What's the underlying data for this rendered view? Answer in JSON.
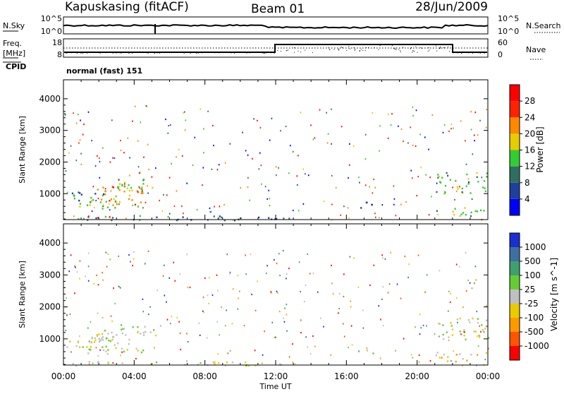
{
  "header": {
    "station": "Kapuskasing (fitACF)",
    "beam": "Beam 01",
    "date": "28/Jun/2009"
  },
  "noise_panel": {
    "left_label": "N.Sky",
    "right_label": "N.Search",
    "left_ticks": [
      "10^5",
      "10^0"
    ],
    "right_ticks": [
      "10^5",
      "10^0"
    ]
  },
  "freq_panel": {
    "left_label_1": "Freq.",
    "left_label_2": "[MHz]",
    "right_label": "Nave",
    "left_ticks": [
      "18",
      "8"
    ],
    "right_ticks": [
      "60",
      "0"
    ]
  },
  "cpid": {
    "label": "CPID",
    "value": "normal (fast) 151"
  },
  "chart_data": [
    {
      "type": "heatmap",
      "panel": "power",
      "ylabel": "Slant Range [km]",
      "xlabel": "Time UT",
      "x_ticks": [
        "00:00",
        "04:00",
        "08:00",
        "12:00",
        "16:00",
        "20:00",
        "00:00"
      ],
      "xlim_hours": [
        0,
        24
      ],
      "y_ticks": [
        "1000",
        "2000",
        "3000",
        "4000"
      ],
      "y_tick_values": [
        1000,
        2000,
        3000,
        4000
      ],
      "ylim_km": [
        180,
        4600
      ],
      "colorbar_label": "Power [dB]",
      "colorbar_ticks": [
        "4",
        "8",
        "12",
        "16",
        "20",
        "24",
        "28"
      ],
      "colorbar_colors": [
        "#0000ff",
        "#1f3f9f",
        "#2f6f5f",
        "#33cc33",
        "#e6cc00",
        "#ff8800",
        "#ff2200",
        "#ff0000"
      ],
      "background_region": {
        "t0": 0,
        "t1": 24,
        "r0": 180,
        "r1": 4600
      },
      "features": [
        {
          "name": "early-band-upper",
          "t0": 0.1,
          "t1": 2.6,
          "r0": 750,
          "r1": 1100,
          "level": 2
        },
        {
          "name": "early-band-mid",
          "t0": 0.1,
          "t1": 3.0,
          "r0": 550,
          "r1": 800,
          "level": 3
        },
        {
          "name": "rising-arc",
          "t0": 1.5,
          "t1": 4.5,
          "r0": 600,
          "r1": 1300,
          "level": 5
        },
        {
          "name": "arc-top",
          "t0": 3.0,
          "t1": 5.5,
          "r0": 1100,
          "r1": 1500,
          "level": 3
        },
        {
          "name": "near-range-hot",
          "t0": 1.9,
          "t1": 2.7,
          "r0": 180,
          "r1": 330,
          "level": 7
        },
        {
          "name": "near-range-band",
          "t0": 0.5,
          "t1": 13.0,
          "r0": 180,
          "r1": 330,
          "level": 2
        },
        {
          "name": "evening-arc",
          "t0": 21.0,
          "t1": 24.0,
          "r0": 1000,
          "r1": 1700,
          "level": 3
        },
        {
          "name": "evening-low",
          "t0": 21.0,
          "t1": 24.0,
          "r0": 300,
          "r1": 600,
          "level": 3
        },
        {
          "name": "midday-patch",
          "t0": 16.5,
          "t1": 17.5,
          "r0": 550,
          "r1": 800,
          "level": 1
        }
      ]
    },
    {
      "type": "heatmap",
      "panel": "velocity",
      "ylabel": "Slant Range [km]",
      "xlabel": "Time UT",
      "x_ticks": [
        "00:00",
        "04:00",
        "08:00",
        "12:00",
        "16:00",
        "20:00",
        "00:00"
      ],
      "xlim_hours": [
        0,
        24
      ],
      "y_ticks": [
        "1000",
        "2000",
        "3000",
        "4000"
      ],
      "y_tick_values": [
        1000,
        2000,
        3000,
        4000
      ],
      "ylim_km": [
        180,
        4600
      ],
      "colorbar_label": "Velocity [m s^-1]",
      "colorbar_ticks": [
        "1000",
        "500",
        "100",
        "25",
        "-25",
        "-100",
        "-500",
        "-1000"
      ],
      "colorbar_colors": [
        "#1b2fd0",
        "#3f6fa0",
        "#3f9f6f",
        "#66cc33",
        "#c0c0c0",
        "#e6cc00",
        "#ff9900",
        "#ff5500",
        "#ff0000"
      ],
      "features": [
        {
          "name": "early-band-upper",
          "t0": 0.1,
          "t1": 2.6,
          "r0": 750,
          "r1": 1100,
          "level": 4
        },
        {
          "name": "early-band-mid",
          "t0": 0.1,
          "t1": 3.0,
          "r0": 550,
          "r1": 800,
          "level": 4
        },
        {
          "name": "rising-arc",
          "t0": 1.5,
          "t1": 4.5,
          "r0": 600,
          "r1": 1300,
          "level": 4
        },
        {
          "name": "arc-top",
          "t0": 3.0,
          "t1": 5.5,
          "r0": 1100,
          "r1": 1500,
          "level": 4
        },
        {
          "name": "near-range-band",
          "t0": 0.5,
          "t1": 13.0,
          "r0": 180,
          "r1": 330,
          "level": 4
        },
        {
          "name": "evening-arc",
          "t0": 21.0,
          "t1": 24.0,
          "r0": 1000,
          "r1": 1700,
          "level": 4
        },
        {
          "name": "evening-low",
          "t0": 21.0,
          "t1": 24.0,
          "r0": 300,
          "r1": 600,
          "level": 5
        },
        {
          "name": "midday-patch",
          "t0": 16.5,
          "t1": 17.5,
          "r0": 550,
          "r1": 800,
          "level": 4
        }
      ]
    }
  ]
}
